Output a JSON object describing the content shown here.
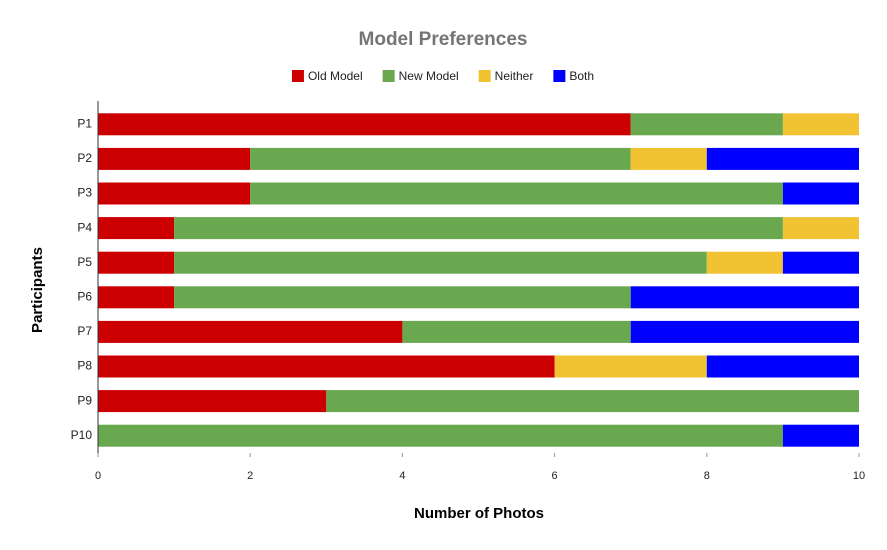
{
  "chart_data": {
    "type": "stacked-bar-horizontal",
    "title": "Model Preferences",
    "x_label": "Number of Photos",
    "y_label": "Participants",
    "categories": [
      "P1",
      "P2",
      "P3",
      "P4",
      "P5",
      "P6",
      "P7",
      "P8",
      "P9",
      "P10"
    ],
    "series": [
      {
        "name": "Old Model",
        "color": "#cc0000",
        "values": [
          7,
          2,
          2,
          1,
          1,
          1,
          4,
          6,
          3,
          0
        ]
      },
      {
        "name": "New Model",
        "color": "#6aa84f",
        "values": [
          2,
          5,
          7,
          8,
          7,
          6,
          3,
          0,
          7,
          9
        ]
      },
      {
        "name": "Neither",
        "color": "#f1c232",
        "values": [
          1,
          1,
          0,
          1,
          1,
          0,
          0,
          2,
          0,
          0
        ]
      },
      {
        "name": "Both",
        "color": "#0000ff",
        "values": [
          0,
          2,
          1,
          0,
          1,
          3,
          3,
          2,
          0,
          1
        ]
      }
    ],
    "xlim": [
      0,
      10
    ],
    "xticks": [
      0,
      2,
      4,
      6,
      8,
      10
    ],
    "legend": "top"
  }
}
